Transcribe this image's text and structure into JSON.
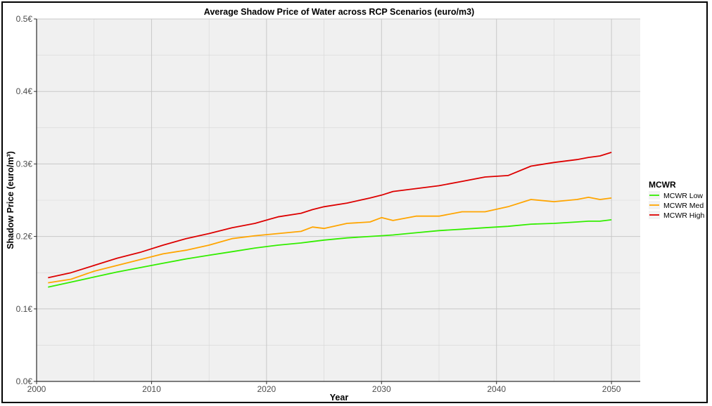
{
  "chart_data": {
    "type": "line",
    "title": "Average Shadow Price of Water across RCP Scenarios (euro/m3)",
    "xlabel": "Year",
    "ylabel": "Shadow Price (euro/m³)",
    "xlim": [
      2000,
      2052.5
    ],
    "ylim": [
      0,
      0.5
    ],
    "x_ticks": [
      2000,
      2010,
      2020,
      2030,
      2040,
      2050
    ],
    "y_ticks": [
      0,
      0.1,
      0.2,
      0.3,
      0.4,
      0.5
    ],
    "y_tick_labels": [
      "0.0€",
      "0.1€",
      "0.2€",
      "0.3€",
      "0.4€",
      "0.5€"
    ],
    "grid": true,
    "legend_title": "MCWR",
    "legend_position": "right",
    "x": [
      2001,
      2003,
      2005,
      2007,
      2009,
      2011,
      2013,
      2015,
      2017,
      2019,
      2021,
      2023,
      2024,
      2025,
      2027,
      2029,
      2030,
      2031,
      2033,
      2035,
      2037,
      2039,
      2041,
      2043,
      2045,
      2047,
      2048,
      2049,
      2050
    ],
    "series": [
      {
        "name": "MCWR Low",
        "color": "#33ee00",
        "values": [
          0.13,
          0.137,
          0.144,
          0.151,
          0.157,
          0.163,
          0.169,
          0.174,
          0.179,
          0.184,
          0.188,
          0.191,
          0.193,
          0.195,
          0.198,
          0.2,
          0.201,
          0.202,
          0.205,
          0.208,
          0.21,
          0.212,
          0.214,
          0.217,
          0.218,
          0.22,
          0.221,
          0.221,
          0.223
        ]
      },
      {
        "name": "MCWR Med",
        "color": "#ffa500",
        "values": [
          0.136,
          0.141,
          0.152,
          0.16,
          0.168,
          0.176,
          0.181,
          0.188,
          0.197,
          0.201,
          0.204,
          0.207,
          0.213,
          0.211,
          0.218,
          0.22,
          0.226,
          0.222,
          0.228,
          0.228,
          0.234,
          0.234,
          0.241,
          0.251,
          0.248,
          0.251,
          0.254,
          0.251,
          0.253
        ]
      },
      {
        "name": "MCWR High",
        "color": "#dd0000",
        "values": [
          0.143,
          0.15,
          0.16,
          0.17,
          0.178,
          0.188,
          0.197,
          0.204,
          0.212,
          0.218,
          0.227,
          0.232,
          0.237,
          0.241,
          0.246,
          0.253,
          0.257,
          0.262,
          0.266,
          0.27,
          0.276,
          0.282,
          0.284,
          0.297,
          0.302,
          0.306,
          0.309,
          0.311,
          0.316
        ]
      }
    ]
  }
}
